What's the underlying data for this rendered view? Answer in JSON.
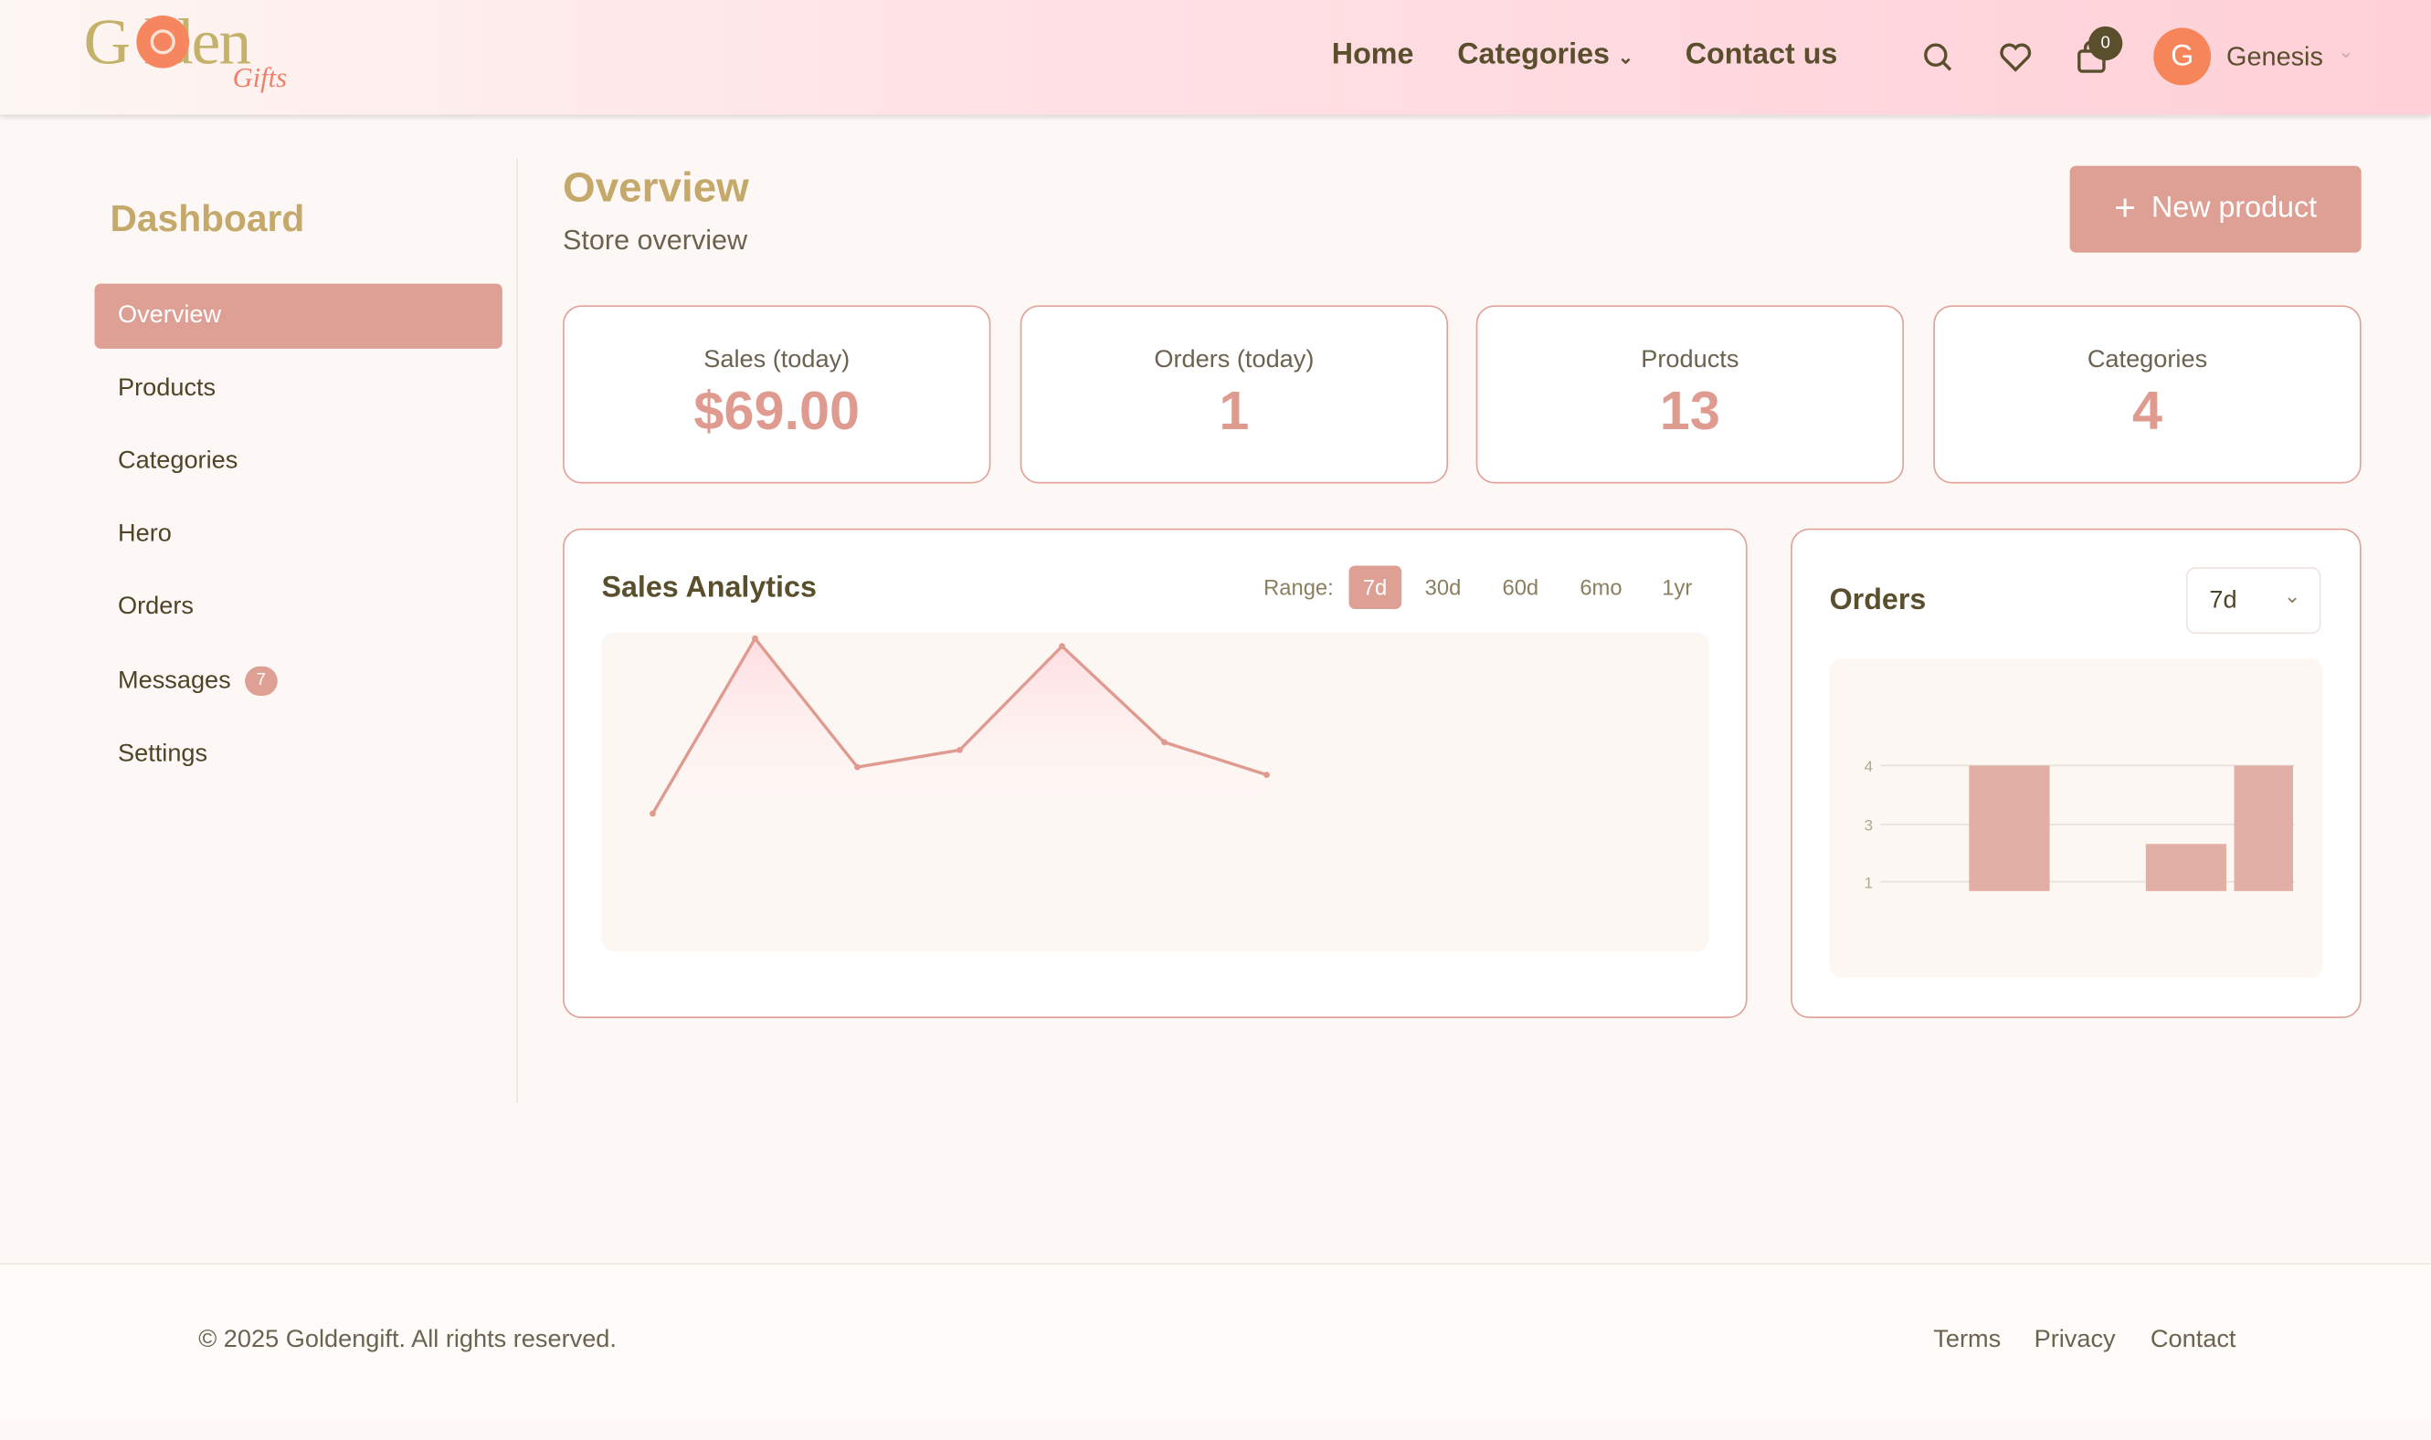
{
  "header": {
    "logo_text": "Golden Gifts",
    "logo_main": "G  lden",
    "logo_sub": "Gifts",
    "nav": [
      {
        "label": "Home"
      },
      {
        "label": "Categories"
      },
      {
        "label": "Contact us"
      }
    ],
    "cart_count": "0",
    "user_initial": "G",
    "user_name": "Genesis"
  },
  "sidebar": {
    "title": "Dashboard",
    "items": [
      {
        "label": "Overview",
        "active": true
      },
      {
        "label": "Products"
      },
      {
        "label": "Categories"
      },
      {
        "label": "Hero"
      },
      {
        "label": "Orders"
      },
      {
        "label": "Messages",
        "badge": "7"
      },
      {
        "label": "Settings"
      }
    ]
  },
  "main": {
    "title": "Overview",
    "subtitle": "Store overview",
    "new_product_label": "New product",
    "stats": [
      {
        "label": "Sales (today)",
        "value": "$69.00"
      },
      {
        "label": "Orders (today)",
        "value": "1"
      },
      {
        "label": "Products",
        "value": "13"
      },
      {
        "label": "Categories",
        "value": "4"
      }
    ],
    "sales_panel": {
      "title": "Sales Analytics",
      "range_label": "Range:",
      "ranges": [
        "7d",
        "30d",
        "60d",
        "6mo",
        "1yr"
      ],
      "active_range": "7d"
    },
    "orders_panel": {
      "title": "Orders",
      "select_value": "7d"
    }
  },
  "chart_data": [
    {
      "type": "area",
      "title": "Sales Analytics",
      "x": [
        1,
        2,
        3,
        4,
        5,
        6,
        7
      ],
      "values": [
        89,
        202,
        119,
        130,
        197,
        135,
        114
      ],
      "grid": false,
      "color": "#df9b8f"
    },
    {
      "type": "bar",
      "title": "Orders",
      "categories": [
        "1",
        "2",
        "3",
        "4",
        "5"
      ],
      "values": [
        0,
        4,
        0,
        1.5,
        4
      ],
      "ytick_labels": [
        "4",
        "3",
        "1"
      ],
      "grid": true,
      "color": "#e2afa4"
    }
  ],
  "footer": {
    "copyright": "© 2025 Goldengift. All rights reserved.",
    "links": [
      "Terms",
      "Privacy",
      "Contact"
    ]
  },
  "colors": {
    "accent": "#dea094",
    "gold": "#c4a96a",
    "text": "#5a4f2c"
  }
}
